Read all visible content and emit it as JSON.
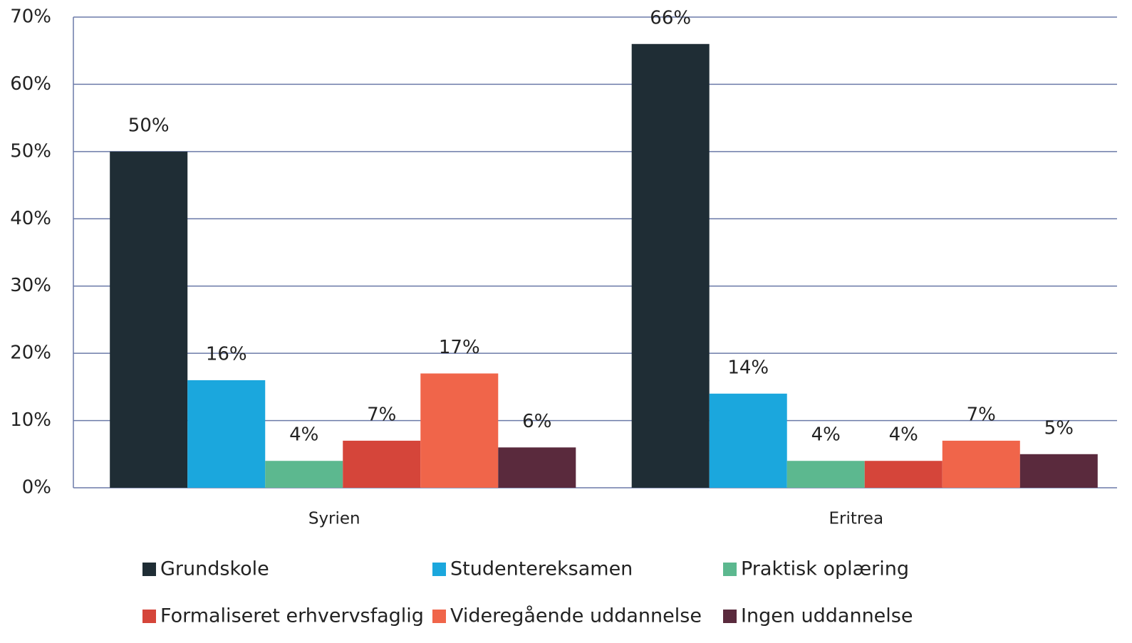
{
  "chart_data": {
    "type": "bar",
    "categories": [
      "Syrien",
      "Eritrea"
    ],
    "series": [
      {
        "name": "Grundskole",
        "color": "#1f2d35",
        "values": [
          50,
          66
        ],
        "value_labels": [
          "50%",
          "66%"
        ]
      },
      {
        "name": "Studentereksamen",
        "color": "#1ba7dd",
        "values": [
          16,
          14
        ],
        "value_labels": [
          "16%",
          "14%"
        ]
      },
      {
        "name": "Praktisk oplæring",
        "color": "#5cb88f",
        "values": [
          4,
          4
        ],
        "value_labels": [
          "4%",
          "4%"
        ]
      },
      {
        "name": "Formaliseret erhvervsfaglig",
        "color": "#d5453a",
        "values": [
          7,
          4
        ],
        "value_labels": [
          "7%",
          "4%"
        ]
      },
      {
        "name": "Videregående uddannelse",
        "color": "#f0654a",
        "values": [
          17,
          7
        ],
        "value_labels": [
          "17%",
          "7%"
        ]
      },
      {
        "name": "Ingen uddannelse",
        "color": "#5a2a3d",
        "values": [
          6,
          5
        ],
        "value_labels": [
          "6%",
          "5%"
        ]
      }
    ],
    "ylim": [
      0,
      70
    ],
    "yticks": [
      {
        "value": 0,
        "label": "0%"
      },
      {
        "value": 10,
        "label": "10%"
      },
      {
        "value": 20,
        "label": "20%"
      },
      {
        "value": 30,
        "label": "30%"
      },
      {
        "value": 40,
        "label": "40%"
      },
      {
        "value": 50,
        "label": "50%"
      },
      {
        "value": 60,
        "label": "60%"
      },
      {
        "value": 70,
        "label": "70%"
      }
    ],
    "grid": true,
    "legend": "bottom"
  }
}
